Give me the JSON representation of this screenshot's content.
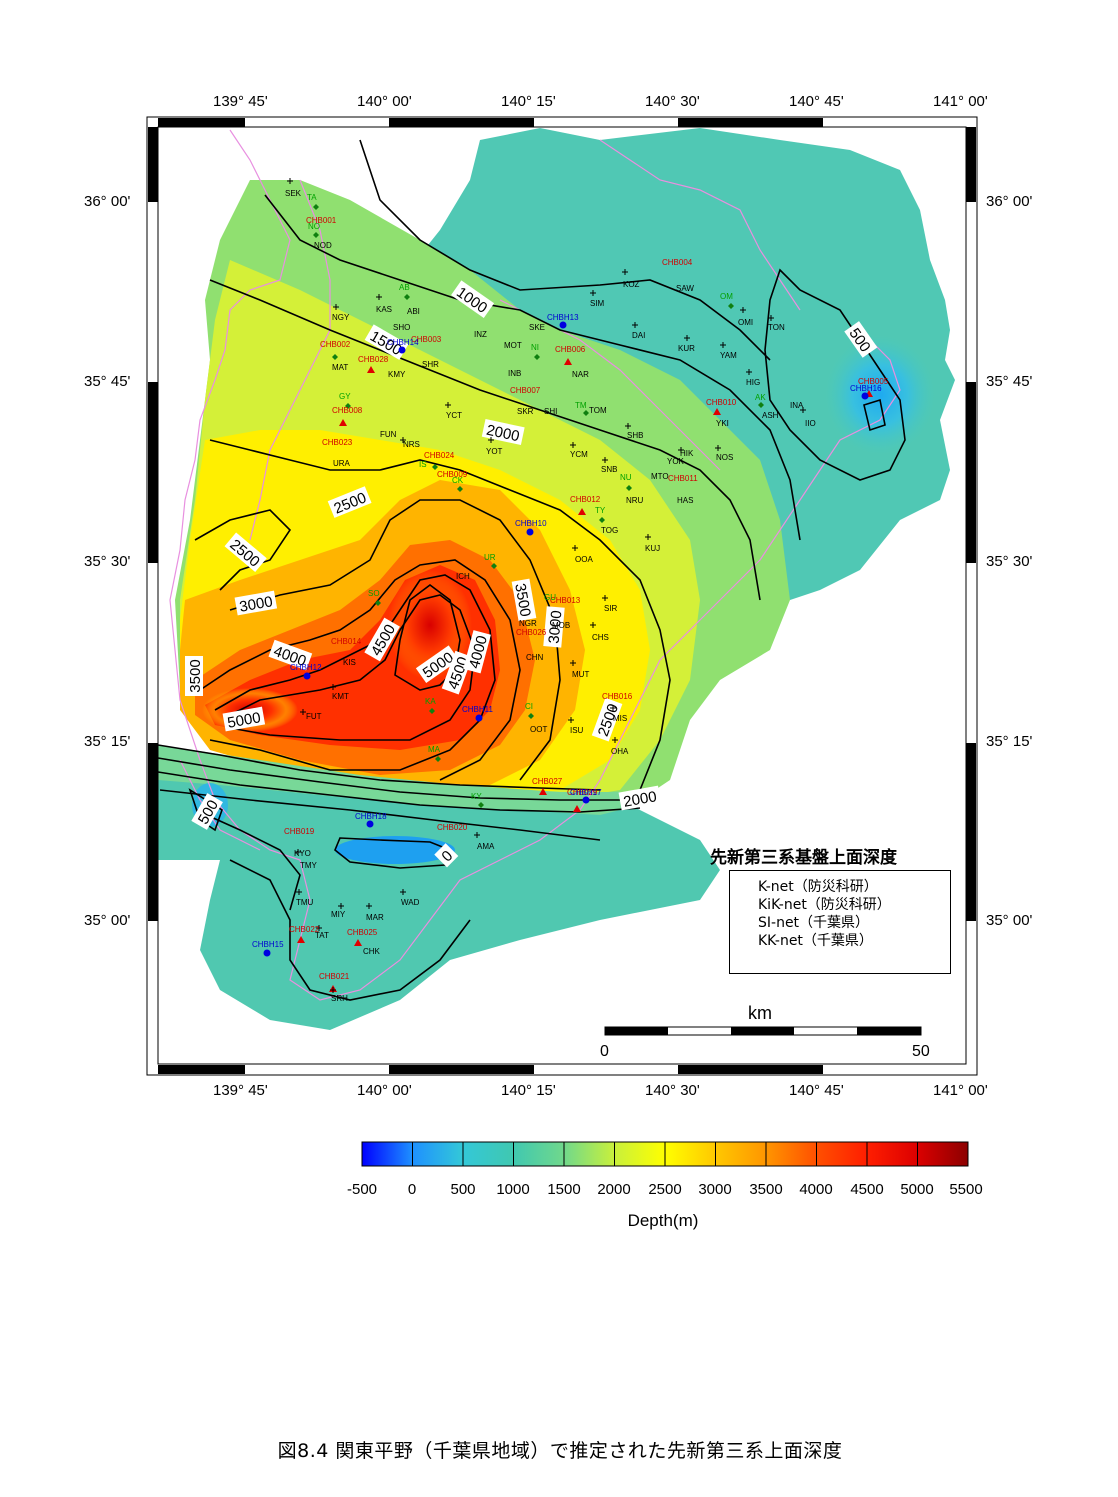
{
  "map": {
    "lon_ticks": [
      "139° 45'",
      "140° 00'",
      "140° 15'",
      "140° 30'",
      "140° 45'",
      "141° 00'"
    ],
    "lat_ticks": [
      "36° 00'",
      "35° 45'",
      "35° 30'",
      "35° 15'",
      "35° 00'"
    ],
    "contour_labels": [
      "500",
      "1000",
      "1500",
      "2000",
      "2500",
      "2500",
      "3000",
      "3500",
      "4000",
      "4500",
      "5000",
      "4500",
      "4000",
      "3500",
      "3000",
      "5000",
      "2500",
      "2000",
      "500",
      "0",
      "500"
    ],
    "region_color_scale": "depth (m)"
  },
  "stations": {
    "knet": [
      "CHB001",
      "CHB002",
      "CHB003",
      "CHB004",
      "CHB005",
      "CHB006",
      "CHB007",
      "CHB008",
      "CHB009",
      "CHB010",
      "CHB011",
      "CHB012",
      "CHB013",
      "CHB014",
      "CHB016",
      "CHB019",
      "CHB020",
      "CHB021",
      "CHB022",
      "CHB023",
      "CHB024",
      "CHB025",
      "CHB026",
      "CHB027",
      "CHB028",
      "CHB029"
    ],
    "kiknet": [
      "CHBH10",
      "CHBH11",
      "CHBH12",
      "CHBH13",
      "CHBH14",
      "CHBH15",
      "CHBH16",
      "CHBH17",
      "CHBH18"
    ],
    "sinet": [
      "SEK",
      "NOD",
      "KAS",
      "ABI",
      "NGY",
      "SHO",
      "MAT",
      "KMY",
      "SHR",
      "INZ",
      "MOT",
      "SKE",
      "INB",
      "NAR",
      "SIM",
      "KOZ",
      "SAW",
      "DAI",
      "KUR",
      "YAM",
      "OMI",
      "TON",
      "HIG",
      "ASH",
      "INA",
      "IIO",
      "YKI",
      "NOS",
      "HIK",
      "YOK",
      "MTO",
      "HAS",
      "SHB",
      "TOM",
      "SHI",
      "SKR",
      "YCT",
      "FUN",
      "NRS",
      "YOT",
      "YCM",
      "SNB",
      "NRU",
      "TOG",
      "KUJ",
      "OOA",
      "URA",
      "ICH",
      "SIR",
      "CHS",
      "MOB",
      "NGR",
      "CHN",
      "MUT",
      "MIS",
      "OHA",
      "ISU",
      "OOT",
      "KIS",
      "KMT",
      "FUT",
      "AMA",
      "KYO",
      "TMY",
      "TMU",
      "MIY",
      "MAR",
      "WAD",
      "TAT",
      "CHK",
      "SRH"
    ],
    "kknet": [
      "TA",
      "NO",
      "AB",
      "GY",
      "IS",
      "CK",
      "TY",
      "NU",
      "OM",
      "AK",
      "TM",
      "NI",
      "UR",
      "SO",
      "KA",
      "GU",
      "CI",
      "MA",
      "KY"
    ]
  },
  "legend": {
    "title": "先新第三系基盤上面深度",
    "items": [
      {
        "symbol": "▲",
        "color": "#e00000",
        "label": "K-net（防災科研）"
      },
      {
        "symbol": "●",
        "color": "#0000e0",
        "label": "KiK-net（防災科研）"
      },
      {
        "symbol": "+",
        "color": "#000000",
        "label": "SI-net（千葉県）"
      },
      {
        "symbol": "◆",
        "color": "#00a000",
        "label": "KK-net（千葉県）"
      }
    ]
  },
  "scale_bar": {
    "unit": "km",
    "start": "0",
    "end": "50"
  },
  "colorbar": {
    "ticks": [
      "-500",
      "0",
      "500",
      "1000",
      "1500",
      "2000",
      "2500",
      "3000",
      "3500",
      "4000",
      "4500",
      "5000",
      "5500"
    ],
    "title": "Depth(m)",
    "colors": [
      "#0000ff",
      "#1e90ff",
      "#33c8d8",
      "#40c8b0",
      "#70d88c",
      "#c8f03c",
      "#ffff00",
      "#ffc800",
      "#ff9600",
      "#ff5000",
      "#ff1e00",
      "#dc0000",
      "#8c0000"
    ]
  },
  "caption": "図8.4 関東平野（千葉県地域）で推定された先新第三系上面深度"
}
